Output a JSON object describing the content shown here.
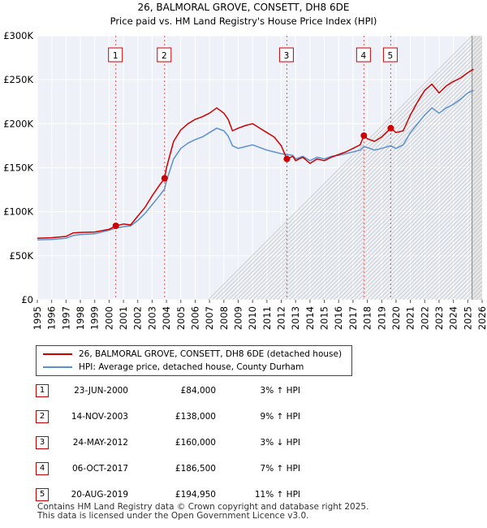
{
  "chart_data": {
    "type": "line",
    "title": "26, BALMORAL GROVE, CONSETT, DH8 6DE",
    "subtitle": "Price paid vs. HM Land Registry's House Price Index (HPI)",
    "xlim": [
      1995,
      2026
    ],
    "ylim": [
      0,
      300000
    ],
    "x_ticks": [
      1995,
      1996,
      1997,
      1998,
      1999,
      2000,
      2001,
      2002,
      2003,
      2004,
      2005,
      2006,
      2007,
      2008,
      2009,
      2010,
      2011,
      2012,
      2013,
      2014,
      2015,
      2016,
      2017,
      2018,
      2019,
      2020,
      2021,
      2022,
      2023,
      2024,
      2025,
      2026
    ],
    "y_ticks": [
      {
        "value": 0,
        "label": "£0"
      },
      {
        "value": 50000,
        "label": "£50K"
      },
      {
        "value": 100000,
        "label": "£100K"
      },
      {
        "value": 150000,
        "label": "£150K"
      },
      {
        "value": 200000,
        "label": "£200K"
      },
      {
        "value": 250000,
        "label": "£250K"
      },
      {
        "value": 300000,
        "label": "£300K"
      }
    ],
    "future_start": 2025.3,
    "series": [
      {
        "name": "26, BALMORAL GROVE, CONSETT, DH8 6DE (detached house)",
        "color": "#cc0000",
        "points": [
          [
            1995,
            70000
          ],
          [
            1996,
            70500
          ],
          [
            1997,
            72000
          ],
          [
            1997.5,
            76000
          ],
          [
            1998,
            76500
          ],
          [
            1999,
            77000
          ],
          [
            2000,
            80000
          ],
          [
            2000.47,
            84000
          ],
          [
            2001,
            86000
          ],
          [
            2001.5,
            85000
          ],
          [
            2002,
            95000
          ],
          [
            2002.5,
            105000
          ],
          [
            2003,
            118000
          ],
          [
            2003.5,
            130000
          ],
          [
            2003.87,
            138000
          ],
          [
            2004,
            150000
          ],
          [
            2004.5,
            180000
          ],
          [
            2005,
            193000
          ],
          [
            2005.5,
            200000
          ],
          [
            2006,
            205000
          ],
          [
            2006.5,
            208000
          ],
          [
            2007,
            212000
          ],
          [
            2007.5,
            218000
          ],
          [
            2008,
            212000
          ],
          [
            2008.3,
            205000
          ],
          [
            2008.6,
            192000
          ],
          [
            2009,
            195000
          ],
          [
            2009.5,
            198000
          ],
          [
            2010,
            200000
          ],
          [
            2010.5,
            195000
          ],
          [
            2011,
            190000
          ],
          [
            2011.5,
            185000
          ],
          [
            2012,
            175000
          ],
          [
            2012.39,
            160000
          ],
          [
            2012.8,
            163000
          ],
          [
            2013,
            158000
          ],
          [
            2013.5,
            162000
          ],
          [
            2014,
            155000
          ],
          [
            2014.5,
            160000
          ],
          [
            2015,
            158000
          ],
          [
            2015.5,
            162000
          ],
          [
            2016,
            165000
          ],
          [
            2016.5,
            168000
          ],
          [
            2017,
            172000
          ],
          [
            2017.5,
            176000
          ],
          [
            2017.76,
            186500
          ],
          [
            2018,
            183000
          ],
          [
            2018.5,
            180000
          ],
          [
            2019,
            185000
          ],
          [
            2019.63,
            194950
          ],
          [
            2020,
            190000
          ],
          [
            2020.5,
            192000
          ],
          [
            2021,
            210000
          ],
          [
            2021.5,
            225000
          ],
          [
            2022,
            238000
          ],
          [
            2022.5,
            245000
          ],
          [
            2023,
            235000
          ],
          [
            2023.5,
            243000
          ],
          [
            2024,
            248000
          ],
          [
            2024.5,
            252000
          ],
          [
            2025,
            258000
          ],
          [
            2025.4,
            262000
          ]
        ]
      },
      {
        "name": "HPI: Average price, detached house, County Durham",
        "color": "#5b8fcf",
        "points": [
          [
            1995,
            68000
          ],
          [
            1996,
            68500
          ],
          [
            1997,
            70000
          ],
          [
            1997.5,
            73000
          ],
          [
            1998,
            74000
          ],
          [
            1999,
            75000
          ],
          [
            2000,
            79000
          ],
          [
            2000.47,
            81500
          ],
          [
            2001,
            83000
          ],
          [
            2001.5,
            84000
          ],
          [
            2002,
            90000
          ],
          [
            2002.5,
            98000
          ],
          [
            2003,
            108000
          ],
          [
            2003.5,
            118000
          ],
          [
            2003.87,
            126000
          ],
          [
            2004,
            135000
          ],
          [
            2004.5,
            160000
          ],
          [
            2005,
            172000
          ],
          [
            2005.5,
            178000
          ],
          [
            2006,
            182000
          ],
          [
            2006.5,
            185000
          ],
          [
            2007,
            190000
          ],
          [
            2007.5,
            195000
          ],
          [
            2008,
            192000
          ],
          [
            2008.3,
            186000
          ],
          [
            2008.6,
            175000
          ],
          [
            2009,
            172000
          ],
          [
            2009.5,
            174000
          ],
          [
            2010,
            176000
          ],
          [
            2010.5,
            173000
          ],
          [
            2011,
            170000
          ],
          [
            2011.5,
            168000
          ],
          [
            2012,
            166000
          ],
          [
            2012.39,
            165000
          ],
          [
            2012.8,
            164000
          ],
          [
            2013,
            160000
          ],
          [
            2013.5,
            163000
          ],
          [
            2014,
            158000
          ],
          [
            2014.5,
            162000
          ],
          [
            2015,
            160000
          ],
          [
            2015.5,
            163000
          ],
          [
            2016,
            164000
          ],
          [
            2016.5,
            166000
          ],
          [
            2017,
            168000
          ],
          [
            2017.5,
            170000
          ],
          [
            2017.76,
            174000
          ],
          [
            2018,
            173000
          ],
          [
            2018.5,
            170000
          ],
          [
            2019,
            172000
          ],
          [
            2019.63,
            175000
          ],
          [
            2020,
            172000
          ],
          [
            2020.5,
            176000
          ],
          [
            2021,
            190000
          ],
          [
            2021.5,
            200000
          ],
          [
            2022,
            210000
          ],
          [
            2022.5,
            218000
          ],
          [
            2023,
            212000
          ],
          [
            2023.5,
            218000
          ],
          [
            2024,
            222000
          ],
          [
            2024.5,
            228000
          ],
          [
            2025,
            235000
          ],
          [
            2025.4,
            238000
          ]
        ]
      }
    ],
    "sales": [
      {
        "num": "1",
        "x": 2000.47,
        "value": 84000
      },
      {
        "num": "2",
        "x": 2003.87,
        "value": 138000
      },
      {
        "num": "3",
        "x": 2012.39,
        "value": 160000
      },
      {
        "num": "4",
        "x": 2017.76,
        "value": 186500
      },
      {
        "num": "5",
        "x": 2019.63,
        "value": 194950
      }
    ]
  },
  "legend": {
    "property_label": "26, BALMORAL GROVE, CONSETT, DH8 6DE (detached house)",
    "hpi_label": "HPI: Average price, detached house, County Durham"
  },
  "sales_table": [
    {
      "num": "1",
      "date": "23-JUN-2000",
      "price": "£84,000",
      "hpi": "3% ↑ HPI"
    },
    {
      "num": "2",
      "date": "14-NOV-2003",
      "price": "£138,000",
      "hpi": "9% ↑ HPI"
    },
    {
      "num": "3",
      "date": "24-MAY-2012",
      "price": "£160,000",
      "hpi": "3% ↓ HPI"
    },
    {
      "num": "4",
      "date": "06-OCT-2017",
      "price": "£186,500",
      "hpi": "7% ↑ HPI"
    },
    {
      "num": "5",
      "date": "20-AUG-2019",
      "price": "£194,950",
      "hpi": "11% ↑ HPI"
    }
  ],
  "footer": {
    "line1": "Contains HM Land Registry data © Crown copyright and database right 2025.",
    "line2": "This data is licensed under the Open Government Licence v3.0."
  }
}
